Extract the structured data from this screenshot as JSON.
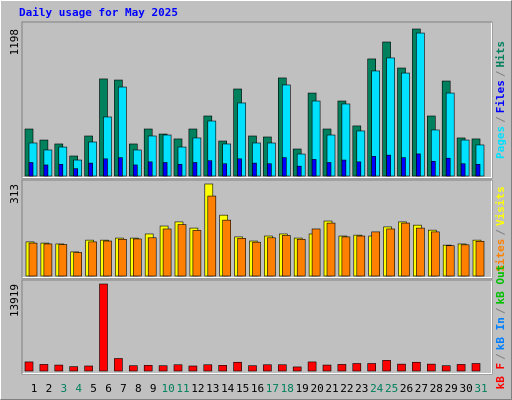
{
  "chart_data": [
    {
      "type": "bar",
      "title": "Daily usage for May 2025",
      "ylim": [
        0,
        1198
      ],
      "yticks": [
        1198
      ],
      "legend_separator": "/",
      "series": [
        {
          "name": "Hits",
          "color": "#00805c",
          "values": [
            383,
            293,
            261,
            163,
            326,
            791,
            782,
            261,
            383,
            342,
            302,
            383,
            489,
            285,
            709,
            326,
            318,
            799,
            220,
            676,
            383,
            611,
            408,
            954,
            1092,
            880,
            1198,
            489,
            774,
            310,
            302
          ]
        },
        {
          "name": "Pages",
          "color": "#00e0ff",
          "values": [
            269,
            212,
            236,
            130,
            277,
            481,
            725,
            212,
            326,
            334,
            236,
            310,
            448,
            261,
            595,
            269,
            269,
            742,
            179,
            611,
            334,
            587,
            367,
            856,
            962,
            839,
            1165,
            375,
            676,
            293,
            253
          ]
        },
        {
          "name": "Files",
          "color": "#0000ff",
          "values": [
            110,
            90,
            95,
            60,
            105,
            140,
            150,
            90,
            115,
            110,
            95,
            110,
            125,
            100,
            140,
            105,
            100,
            150,
            80,
            135,
            110,
            130,
            115,
            160,
            170,
            150,
            180,
            120,
            145,
            100,
            95
          ]
        }
      ],
      "legend_order": [
        "Pages",
        "Files",
        "Hits"
      ]
    },
    {
      "type": "bar",
      "ylim": [
        0,
        313
      ],
      "yticks": [
        313
      ],
      "legend_separator": "/",
      "series": [
        {
          "name": "Visits",
          "color": "#ffff00",
          "values": [
            116,
            112,
            109,
            82,
            122,
            122,
            129,
            129,
            143,
            170,
            184,
            163,
            313,
            207,
            133,
            119,
            136,
            143,
            129,
            143,
            187,
            136,
            139,
            136,
            167,
            184,
            173,
            156,
            105,
            109,
            122
          ]
        },
        {
          "name": "Sites",
          "color": "#ff8000",
          "values": [
            112,
            109,
            107,
            80,
            116,
            119,
            125,
            126,
            130,
            160,
            175,
            155,
            272,
            190,
            128,
            115,
            130,
            138,
            125,
            160,
            180,
            133,
            136,
            150,
            160,
            180,
            163,
            150,
            103,
            106,
            118
          ]
        }
      ],
      "legend_order": [
        "Sites",
        "Visits"
      ]
    },
    {
      "type": "bar",
      "ylim": [
        0,
        13919
      ],
      "yticks": [
        13919
      ],
      "legend_separator": "/",
      "categories": [
        "1",
        "2",
        "3",
        "4",
        "5",
        "6",
        "7",
        "8",
        "9",
        "10",
        "11",
        "12",
        "13",
        "14",
        "15",
        "16",
        "17",
        "18",
        "19",
        "20",
        "21",
        "22",
        "23",
        "24",
        "25",
        "26",
        "27",
        "28",
        "29",
        "30",
        "31"
      ],
      "category_colors": [
        "#000000",
        "#000000",
        "#00805c",
        "#00805c",
        "#000000",
        "#000000",
        "#000000",
        "#000000",
        "#000000",
        "#00805c",
        "#00805c",
        "#000000",
        "#000000",
        "#000000",
        "#000000",
        "#000000",
        "#00805c",
        "#00805c",
        "#000000",
        "#000000",
        "#000000",
        "#000000",
        "#000000",
        "#00805c",
        "#00805c",
        "#000000",
        "#000000",
        "#000000",
        "#000000",
        "#000000",
        "#00805c"
      ],
      "series": [
        {
          "name": "kB F",
          "color": "#ff0000",
          "values": [
            1450,
            1050,
            950,
            700,
            800,
            13919,
            2000,
            850,
            900,
            850,
            1000,
            800,
            1000,
            900,
            1400,
            850,
            1000,
            1000,
            650,
            1450,
            950,
            1050,
            1200,
            1200,
            1700,
            1100,
            1400,
            1100,
            850,
            1050,
            1200
          ]
        }
      ],
      "legend": [
        {
          "name": "kB F",
          "color": "#ff0000"
        },
        {
          "name": "kB In",
          "color": "#0080ff"
        },
        {
          "name": "kB Out",
          "color": "#00c000"
        }
      ]
    }
  ]
}
